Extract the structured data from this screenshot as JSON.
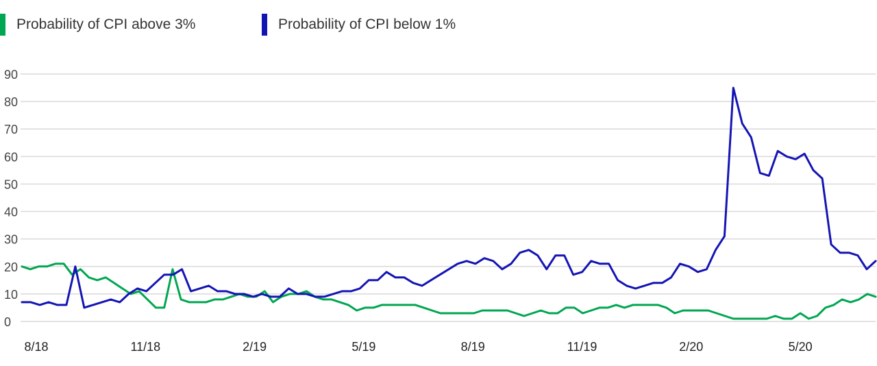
{
  "legend": [
    {
      "label": "Probability of CPI above 3%",
      "color": "#00A651"
    },
    {
      "label": "Probability of CPI below 1%",
      "color": "#1414B4"
    }
  ],
  "chart_data": {
    "type": "line",
    "title": "",
    "xlabel": "",
    "ylabel": "",
    "ylim": [
      0,
      90
    ],
    "yticks": [
      0,
      10,
      20,
      30,
      40,
      50,
      60,
      70,
      80,
      90
    ],
    "grid": true,
    "legend_position": "top-left",
    "xtick_labels": [
      "8/18",
      "11/18",
      "2/19",
      "5/19",
      "8/19",
      "11/19",
      "2/20",
      "5/20"
    ],
    "series": [
      {
        "name": "Probability of CPI above 3%",
        "color": "#00A651",
        "values": [
          20,
          19,
          20,
          20,
          21,
          21,
          17,
          19,
          16,
          15,
          16,
          14,
          12,
          10,
          11,
          8,
          5,
          5,
          19,
          8,
          7,
          7,
          7,
          8,
          8,
          9,
          10,
          9,
          9,
          11,
          7,
          9,
          10,
          10,
          11,
          9,
          8,
          8,
          7,
          6,
          4,
          5,
          5,
          6,
          6,
          6,
          6,
          6,
          5,
          4,
          3,
          3,
          3,
          3,
          3,
          4,
          4,
          4,
          4,
          3,
          2,
          3,
          4,
          3,
          3,
          5,
          5,
          3,
          4,
          5,
          5,
          6,
          5,
          6,
          6,
          6,
          6,
          5,
          3,
          4,
          4,
          4,
          4,
          3,
          2,
          1,
          1,
          1,
          1,
          1,
          2,
          1,
          1,
          3,
          1,
          2,
          5,
          6,
          8,
          7,
          8,
          10,
          9
        ]
      },
      {
        "name": "Probability of CPI below 1%",
        "color": "#1414B4",
        "values": [
          7,
          7,
          6,
          7,
          6,
          6,
          20,
          5,
          6,
          7,
          8,
          7,
          10,
          12,
          11,
          14,
          17,
          17,
          19,
          11,
          12,
          13,
          11,
          11,
          10,
          10,
          9,
          10,
          9,
          9,
          12,
          10,
          10,
          9,
          9,
          10,
          11,
          11,
          12,
          15,
          15,
          18,
          16,
          16,
          14,
          13,
          15,
          17,
          19,
          21,
          22,
          21,
          23,
          22,
          19,
          21,
          25,
          26,
          24,
          19,
          24,
          24,
          17,
          18,
          22,
          21,
          21,
          15,
          13,
          12,
          13,
          14,
          14,
          16,
          21,
          20,
          18,
          19,
          26,
          31,
          85,
          72,
          67,
          54,
          53,
          62,
          60,
          59,
          61,
          55,
          52,
          28,
          25,
          25,
          24,
          19,
          22
        ]
      }
    ]
  }
}
